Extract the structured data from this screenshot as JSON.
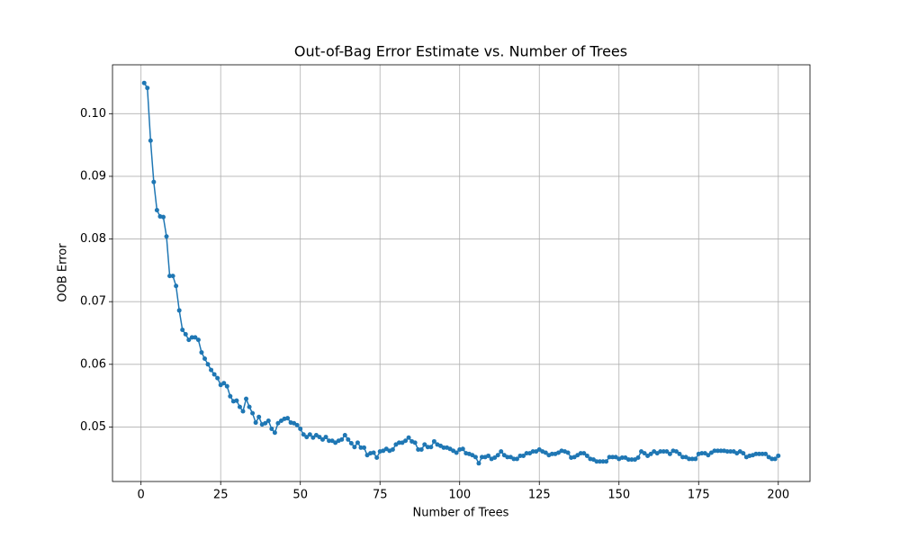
{
  "chart_data": {
    "type": "line",
    "title": "Out-of-Bag Error Estimate vs. Number of Trees",
    "xlabel": "Number of Trees",
    "ylabel": "OOB Error",
    "xlim": [
      -8.95,
      209.95
    ],
    "ylim": [
      0.0413,
      0.1078
    ],
    "xticks": [
      0,
      25,
      50,
      75,
      100,
      125,
      150,
      175,
      200
    ],
    "yticks": [
      0.05,
      0.06,
      0.07,
      0.08,
      0.09,
      {
        "value": 0.1,
        "label": "0.10"
      }
    ],
    "grid": true,
    "x": [
      1,
      2,
      3,
      4,
      5,
      6,
      7,
      8,
      9,
      10,
      11,
      12,
      13,
      14,
      15,
      16,
      17,
      18,
      19,
      20,
      21,
      22,
      23,
      24,
      25,
      26,
      27,
      28,
      29,
      30,
      31,
      32,
      33,
      34,
      35,
      36,
      37,
      38,
      39,
      40,
      41,
      42,
      43,
      44,
      45,
      46,
      47,
      48,
      49,
      50,
      51,
      52,
      53,
      54,
      55,
      56,
      57,
      58,
      59,
      60,
      61,
      62,
      63,
      64,
      65,
      66,
      67,
      68,
      69,
      70,
      71,
      72,
      73,
      74,
      75,
      76,
      77,
      78,
      79,
      80,
      81,
      82,
      83,
      84,
      85,
      86,
      87,
      88,
      89,
      90,
      91,
      92,
      93,
      94,
      95,
      96,
      97,
      98,
      99,
      100,
      101,
      102,
      103,
      104,
      105,
      106,
      107,
      108,
      109,
      110,
      111,
      112,
      113,
      114,
      115,
      116,
      117,
      118,
      119,
      120,
      121,
      122,
      123,
      124,
      125,
      126,
      127,
      128,
      129,
      130,
      131,
      132,
      133,
      134,
      135,
      136,
      137,
      138,
      139,
      140,
      141,
      142,
      143,
      144,
      145,
      146,
      147,
      148,
      149,
      150,
      151,
      152,
      153,
      154,
      155,
      156,
      157,
      158,
      159,
      160,
      161,
      162,
      163,
      164,
      165,
      166,
      167,
      168,
      169,
      170,
      171,
      172,
      173,
      174,
      175,
      176,
      177,
      178,
      179,
      180,
      181,
      182,
      183,
      184,
      185,
      186,
      187,
      188,
      189,
      190,
      191,
      192,
      193,
      194,
      195,
      196,
      197,
      198,
      199,
      200
    ],
    "series": [
      {
        "color": "#1f77b4",
        "values": [
          0.1049,
          0.1041,
          0.0957,
          0.0891,
          0.0846,
          0.0836,
          0.0835,
          0.0804,
          0.0741,
          0.0741,
          0.0725,
          0.0686,
          0.0655,
          0.0648,
          0.0639,
          0.0643,
          0.0643,
          0.0639,
          0.0619,
          0.0609,
          0.06,
          0.0591,
          0.0584,
          0.0578,
          0.0567,
          0.057,
          0.0565,
          0.0549,
          0.0541,
          0.0542,
          0.0532,
          0.0525,
          0.0545,
          0.0532,
          0.0522,
          0.0507,
          0.0516,
          0.0504,
          0.0506,
          0.051,
          0.0497,
          0.0491,
          0.0506,
          0.051,
          0.0513,
          0.0514,
          0.0507,
          0.0506,
          0.0503,
          0.0497,
          0.0488,
          0.0484,
          0.0488,
          0.0483,
          0.0487,
          0.0484,
          0.048,
          0.0484,
          0.0478,
          0.0478,
          0.0475,
          0.0478,
          0.048,
          0.0487,
          0.048,
          0.0474,
          0.0468,
          0.0475,
          0.0467,
          0.0467,
          0.0455,
          0.0458,
          0.0459,
          0.0451,
          0.0461,
          0.0462,
          0.0465,
          0.0462,
          0.0464,
          0.0472,
          0.0475,
          0.0475,
          0.0478,
          0.0483,
          0.0477,
          0.0475,
          0.0464,
          0.0464,
          0.0472,
          0.0468,
          0.0468,
          0.0477,
          0.0472,
          0.047,
          0.0467,
          0.0467,
          0.0465,
          0.0462,
          0.0459,
          0.0464,
          0.0465,
          0.0458,
          0.0457,
          0.0455,
          0.0452,
          0.0442,
          0.0452,
          0.0452,
          0.0454,
          0.0449,
          0.0451,
          0.0455,
          0.0461,
          0.0455,
          0.0452,
          0.0452,
          0.0449,
          0.0449,
          0.0454,
          0.0454,
          0.0458,
          0.0458,
          0.0461,
          0.0461,
          0.0464,
          0.0461,
          0.0459,
          0.0455,
          0.0457,
          0.0457,
          0.0459,
          0.0462,
          0.0461,
          0.0459,
          0.0451,
          0.0452,
          0.0455,
          0.0458,
          0.0458,
          0.0454,
          0.0449,
          0.0448,
          0.0445,
          0.0445,
          0.0445,
          0.0445,
          0.0452,
          0.0452,
          0.0452,
          0.0449,
          0.0451,
          0.0451,
          0.0448,
          0.0448,
          0.0448,
          0.0451,
          0.0461,
          0.0458,
          0.0454,
          0.0457,
          0.0461,
          0.0458,
          0.0461,
          0.0461,
          0.0461,
          0.0457,
          0.0462,
          0.0461,
          0.0457,
          0.0452,
          0.0452,
          0.0449,
          0.0449,
          0.0449,
          0.0457,
          0.0458,
          0.0458,
          0.0455,
          0.0459,
          0.0462,
          0.0462,
          0.0462,
          0.0462,
          0.0461,
          0.0461,
          0.0461,
          0.0458,
          0.0461,
          0.0458,
          0.0452,
          0.0454,
          0.0455,
          0.0457,
          0.0457,
          0.0457,
          0.0457,
          0.0452,
          0.0449,
          0.0449,
          0.0454
        ]
      }
    ]
  }
}
